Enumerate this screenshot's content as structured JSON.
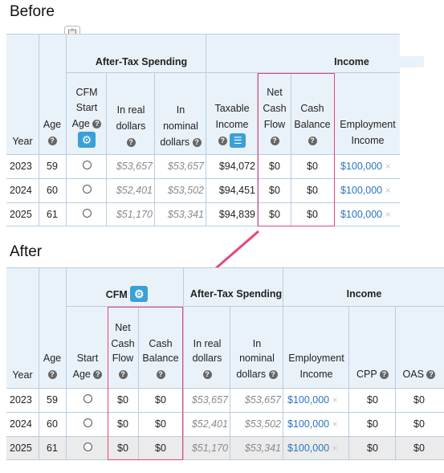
{
  "before": {
    "heading": "Before",
    "groups": {
      "after_tax": "After-Tax Spending",
      "income": "Income"
    },
    "cols": {
      "year": "Year",
      "age": "Age",
      "cfm_l1": "CFM",
      "cfm_l2": "Start",
      "cfm_l3": "Age",
      "real_l1": "In real",
      "real_l2": "dollars",
      "nom_l1": "In",
      "nom_l2": "nominal",
      "nom_l3": "dollars",
      "tax_l1": "Taxable",
      "tax_l2": "Income",
      "ncf_l1": "Net",
      "ncf_l2": "Cash",
      "ncf_l3": "Flow",
      "cb_l1": "Cash",
      "cb_l2": "Balance",
      "emp_l1": "Employment",
      "emp_l2": "Income"
    },
    "rows": [
      {
        "year": "2023",
        "age": "59",
        "real": "$53,657",
        "nominal": "$53,657",
        "taxable": "$94,072",
        "ncf": "$0",
        "cb": "$0",
        "emp": "$100,000"
      },
      {
        "year": "2024",
        "age": "60",
        "real": "$52,401",
        "nominal": "$53,502",
        "taxable": "$94,451",
        "ncf": "$0",
        "cb": "$0",
        "emp": "$100,000"
      },
      {
        "year": "2025",
        "age": "61",
        "real": "$51,170",
        "nominal": "$53,341",
        "taxable": "$94,839",
        "ncf": "$0",
        "cb": "$0",
        "emp": "$100,000"
      }
    ]
  },
  "after": {
    "heading": "After",
    "groups": {
      "cfm": "CFM",
      "after_tax": "After-Tax Spending",
      "income": "Income"
    },
    "cols": {
      "year": "Year",
      "age": "Age",
      "start_l1": "Start",
      "start_l2": "Age",
      "ncf_l1": "Net",
      "ncf_l2": "Cash",
      "ncf_l3": "Flow",
      "cb_l1": "Cash",
      "cb_l2": "Balance",
      "real_l1": "In real",
      "real_l2": "dollars",
      "nom_l1": "In",
      "nom_l2": "nominal",
      "nom_l3": "dollars",
      "emp_l1": "Employment",
      "emp_l2": "Income",
      "cpp": "CPP",
      "oas": "OAS"
    },
    "rows": [
      {
        "year": "2023",
        "age": "59",
        "ncf": "$0",
        "cb": "$0",
        "real": "$53,657",
        "nominal": "$53,657",
        "emp": "$100,000",
        "cpp": "$0",
        "oas": "$0"
      },
      {
        "year": "2024",
        "age": "60",
        "ncf": "$0",
        "cb": "$0",
        "real": "$52,401",
        "nominal": "$53,502",
        "emp": "$100,000",
        "cpp": "$0",
        "oas": "$0"
      },
      {
        "year": "2025",
        "age": "61",
        "ncf": "$0",
        "cb": "$0",
        "real": "$51,170",
        "nominal": "$53,341",
        "emp": "$100,000",
        "cpp": "$0",
        "oas": "$0"
      }
    ]
  },
  "icons": {
    "question": "?",
    "gear": "⚙",
    "list": "☰",
    "remove": "×",
    "clipboard": "📋"
  },
  "colors": {
    "accent_pink": "#e8447a",
    "link_blue": "#2a73c2",
    "header_bg": "#eaf2f9",
    "gear_blue": "#3aa0d8"
  }
}
